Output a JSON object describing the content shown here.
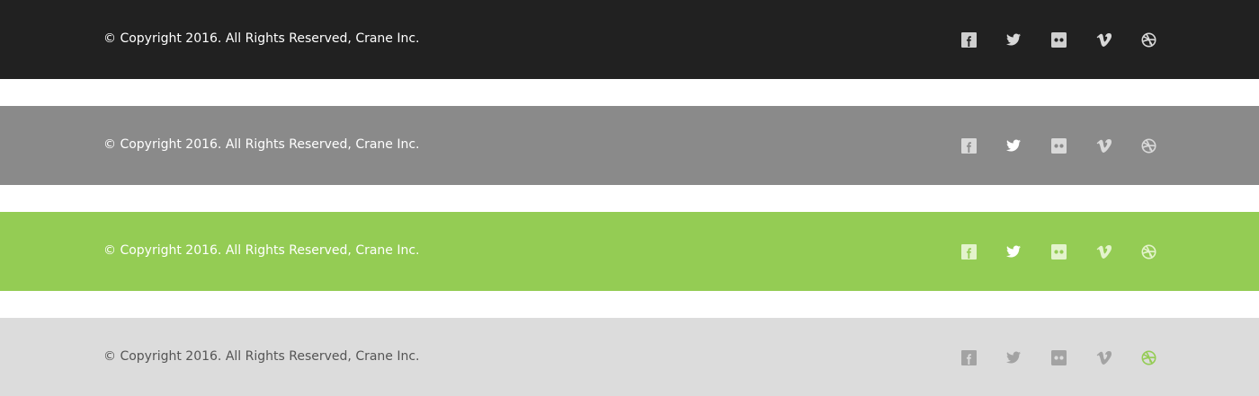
{
  "footers": [
    {
      "variant": "dark",
      "background": "#212121",
      "copyright": "© Copyright 2016. All Rights Reserved, Crane Inc.",
      "social": [
        "facebook-icon",
        "twitter-icon",
        "flickr-icon",
        "vimeo-icon",
        "dribbble-icon"
      ]
    },
    {
      "variant": "gray",
      "background": "#8a8a8a",
      "copyright": "© Copyright 2016. All Rights Reserved, Crane Inc.",
      "social": [
        "facebook-icon",
        "twitter-icon",
        "flickr-icon",
        "vimeo-icon",
        "dribbble-icon"
      ]
    },
    {
      "variant": "green",
      "background": "#94cc54",
      "copyright": "© Copyright 2016. All Rights Reserved, Crane Inc.",
      "social": [
        "facebook-icon",
        "twitter-icon",
        "flickr-icon",
        "vimeo-icon",
        "dribbble-icon"
      ]
    },
    {
      "variant": "light",
      "background": "#dcdcdc",
      "copyright": "© Copyright 2016. All Rights Reserved, Crane Inc.",
      "social": [
        "facebook-icon",
        "twitter-icon",
        "flickr-icon",
        "vimeo-icon",
        "dribbble-icon"
      ],
      "active_icon": "dribbble-icon",
      "active_color": "#94cc54"
    }
  ],
  "colors": {
    "accent_green": "#94cc54",
    "dark": "#212121",
    "gray": "#8a8a8a",
    "light": "#dcdcdc"
  }
}
